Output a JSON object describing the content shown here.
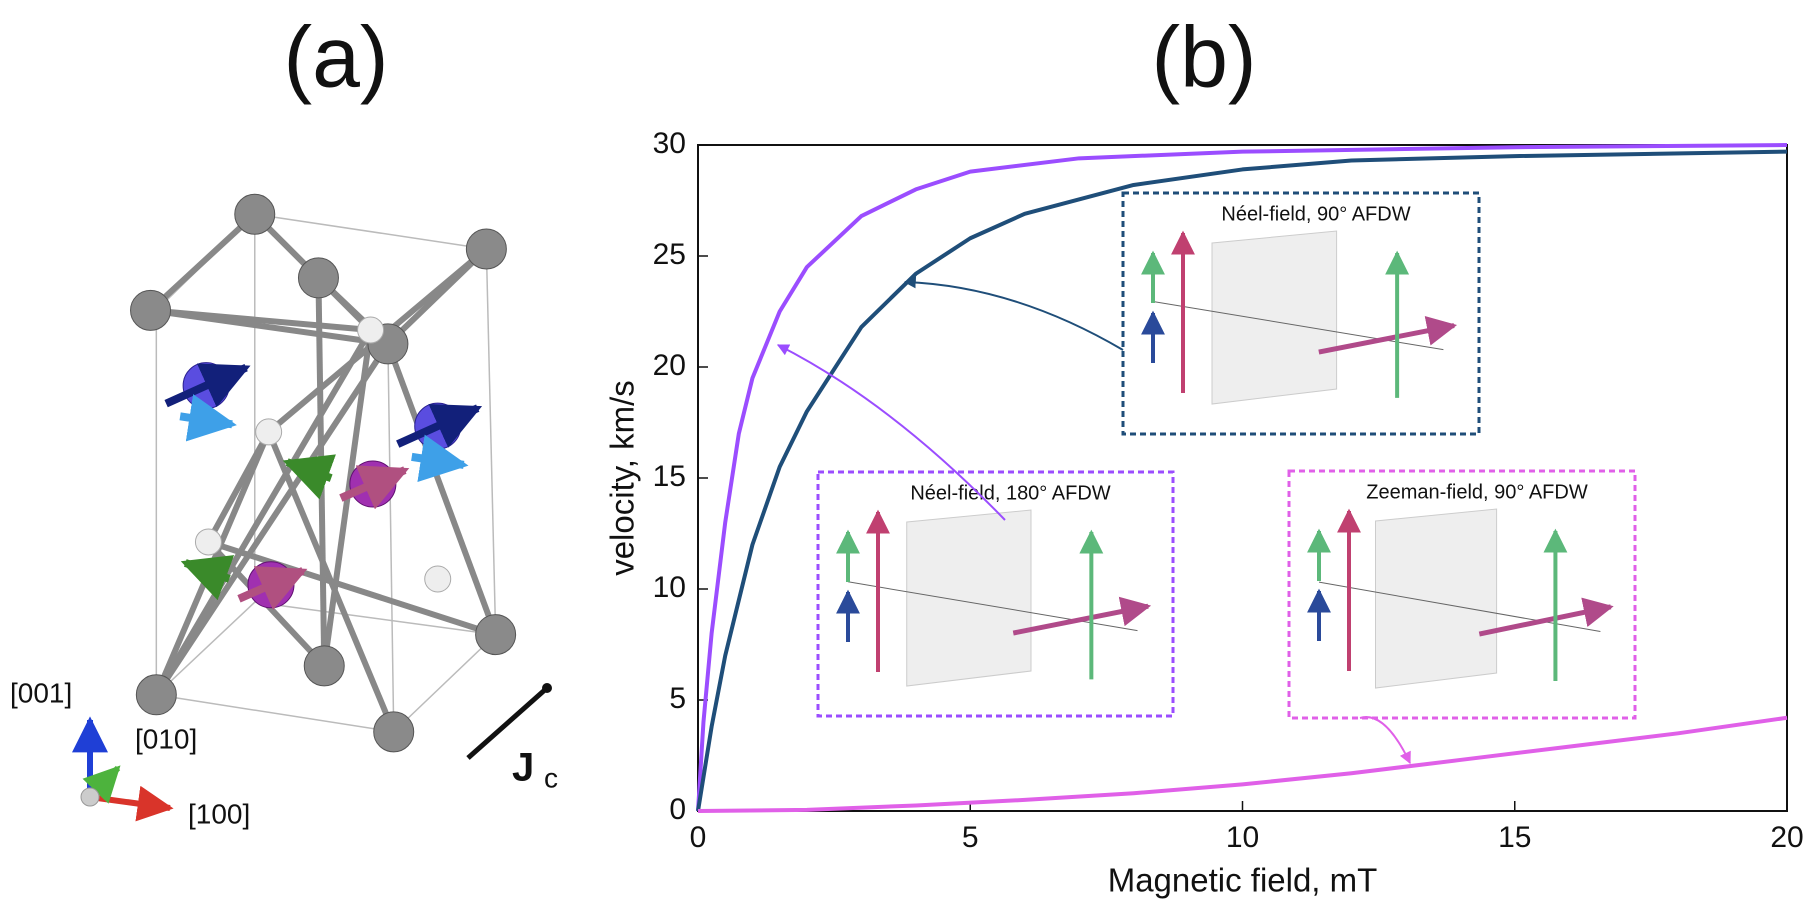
{
  "panel_labels": [
    "(a)",
    "(b)"
  ],
  "diagram": {
    "axes": [
      "[001]",
      "[010]",
      "[100]"
    ],
    "current": {
      "main": "J",
      "sub": "c"
    }
  },
  "chart_data": {
    "type": "line",
    "xlabel": "Magnetic field, mT",
    "ylabel": "velocity, km/s",
    "xlim": [
      0,
      20
    ],
    "ylim": [
      0,
      30
    ],
    "xticks": [
      0,
      5,
      10,
      15,
      20
    ],
    "yticks": [
      0,
      5,
      10,
      15,
      20,
      25,
      30
    ],
    "series": [
      {
        "color": "#9b4dff",
        "x": [
          0,
          0.1,
          0.25,
          0.5,
          0.75,
          1,
          1.5,
          2,
          3,
          4,
          5,
          7,
          10,
          15,
          20
        ],
        "values": [
          0,
          4,
          8,
          13,
          17,
          19.5,
          22.5,
          24.5,
          26.8,
          28,
          28.8,
          29.4,
          29.7,
          29.9,
          30
        ]
      },
      {
        "color": "#1f4e79",
        "x": [
          0,
          0.25,
          0.5,
          1,
          1.5,
          2,
          3,
          4,
          5,
          6,
          8,
          10,
          12,
          15,
          20
        ],
        "values": [
          0,
          3.8,
          7,
          12,
          15.5,
          18,
          21.8,
          24.2,
          25.8,
          26.9,
          28.2,
          28.9,
          29.3,
          29.5,
          29.7
        ]
      },
      {
        "color": "#e060e8",
        "x": [
          0,
          2,
          4,
          6,
          8,
          10,
          12,
          14,
          16,
          18,
          20
        ],
        "values": [
          0,
          0.05,
          0.25,
          0.5,
          0.8,
          1.2,
          1.7,
          2.3,
          2.9,
          3.5,
          4.2
        ]
      }
    ],
    "annotations": [
      {
        "text": "Néel-field, 90° AFDW",
        "color": "#1f4e79"
      },
      {
        "text": "Néel-field, 180° AFDW",
        "color": "#9b4dff"
      },
      {
        "text": "Zeeman-field, 90° AFDW",
        "color": "#e060e8"
      }
    ]
  }
}
